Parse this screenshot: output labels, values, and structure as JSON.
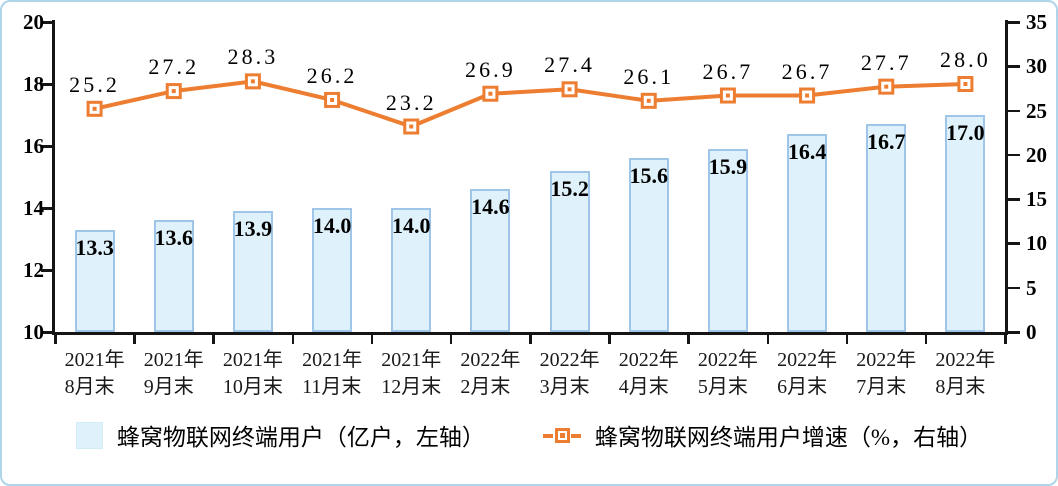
{
  "chart_data": {
    "type": "combo-bar-line",
    "title": "",
    "categories": [
      {
        "line1": "2021年",
        "line2": "8月末"
      },
      {
        "line1": "2021年",
        "line2": "9月末"
      },
      {
        "line1": "2021年",
        "line2": "10月末"
      },
      {
        "line1": "2021年",
        "line2": "11月末"
      },
      {
        "line1": "2021年",
        "line2": "12月末"
      },
      {
        "line1": "2022年",
        "line2": "2月末"
      },
      {
        "line1": "2022年",
        "line2": "3月末"
      },
      {
        "line1": "2022年",
        "line2": "4月末"
      },
      {
        "line1": "2022年",
        "line2": "5月末"
      },
      {
        "line1": "2022年",
        "line2": "6月末"
      },
      {
        "line1": "2022年",
        "line2": "7月末"
      },
      {
        "line1": "2022年",
        "line2": "8月末"
      }
    ],
    "series": [
      {
        "name": "蜂窝物联网终端用户（亿户，左轴）",
        "type": "bar",
        "axis": "left",
        "values": [
          13.3,
          13.6,
          13.9,
          14.0,
          14.0,
          14.6,
          15.2,
          15.6,
          15.9,
          16.4,
          16.7,
          17.0
        ]
      },
      {
        "name": "蜂窝物联网终端用户增速（%，右轴）",
        "type": "line",
        "axis": "right",
        "values": [
          25.2,
          27.2,
          28.3,
          26.2,
          23.2,
          26.9,
          27.4,
          26.1,
          26.7,
          26.7,
          27.7,
          28.0
        ]
      }
    ],
    "left_axis": {
      "min": 10,
      "max": 20,
      "ticks": [
        "20",
        "18",
        "16",
        "14",
        "12",
        "10"
      ]
    },
    "right_axis": {
      "min": 0,
      "max": 35,
      "ticks": [
        "35",
        "30",
        "25",
        "20",
        "15",
        "10",
        "5",
        "0"
      ]
    },
    "grid": false,
    "legend_position": "bottom",
    "colors": {
      "bar_fill": "#dff2fb",
      "bar_border": "#9fc5e8",
      "line": "#ed7d31",
      "axis": "#151515",
      "frame_border": "#aed5ea"
    }
  }
}
